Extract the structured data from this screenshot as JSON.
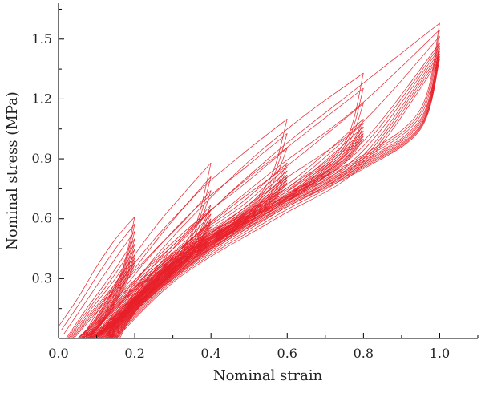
{
  "chart_data": {
    "type": "line",
    "title": "",
    "xlabel": "Nominal strain",
    "ylabel": "Nominal stress (MPa)",
    "xlim": [
      0.0,
      1.1
    ],
    "ylim": [
      0.0,
      1.68
    ],
    "xticks": [
      0.0,
      0.2,
      0.4,
      0.6,
      0.8,
      1.0
    ],
    "xtick_labels": [
      "0.0",
      "0.2",
      "0.4",
      "0.6",
      "0.8",
      "1.0"
    ],
    "yticks": [
      0.3,
      0.6,
      0.9,
      1.2,
      1.5
    ],
    "ytick_labels": [
      "0.3",
      "0.6",
      "0.9",
      "1.2",
      "1.5"
    ],
    "grid": false,
    "legend": "none",
    "line_color": "#e8202a",
    "series": [
      {
        "max_strain": 0.2,
        "loops": [
          {
            "loading": [
              [
                0.0,
                0.06
              ],
              [
                0.05,
                0.2
              ],
              [
                0.1,
                0.36
              ],
              [
                0.15,
                0.5
              ],
              [
                0.2,
                0.61
              ]
            ],
            "unloading": [
              [
                0.2,
                0.61
              ],
              [
                0.17,
                0.36
              ],
              [
                0.13,
                0.2
              ],
              [
                0.09,
                0.08
              ],
              [
                0.05,
                0.0
              ]
            ]
          },
          {
            "loading": [
              [
                0.02,
                0.0
              ],
              [
                0.07,
                0.14
              ],
              [
                0.12,
                0.27
              ],
              [
                0.16,
                0.38
              ],
              [
                0.2,
                0.5
              ]
            ],
            "unloading": [
              [
                0.2,
                0.5
              ],
              [
                0.17,
                0.32
              ],
              [
                0.13,
                0.17
              ],
              [
                0.09,
                0.06
              ],
              [
                0.05,
                0.0
              ]
            ]
          },
          {
            "loading": [
              [
                0.03,
                0.0
              ],
              [
                0.08,
                0.12
              ],
              [
                0.13,
                0.23
              ],
              [
                0.17,
                0.33
              ],
              [
                0.2,
                0.42
              ]
            ],
            "unloading": [
              [
                0.2,
                0.42
              ],
              [
                0.17,
                0.28
              ],
              [
                0.13,
                0.14
              ],
              [
                0.09,
                0.04
              ],
              [
                0.06,
                0.0
              ]
            ]
          },
          {
            "loading": [
              [
                0.04,
                0.0
              ],
              [
                0.09,
                0.11
              ],
              [
                0.14,
                0.22
              ],
              [
                0.18,
                0.31
              ],
              [
                0.2,
                0.37
              ]
            ],
            "unloading": [
              [
                0.2,
                0.37
              ],
              [
                0.17,
                0.25
              ],
              [
                0.13,
                0.12
              ],
              [
                0.09,
                0.03
              ],
              [
                0.06,
                0.0
              ]
            ]
          }
        ]
      },
      {
        "max_strain": 0.4,
        "loops": [
          {
            "loading": [
              [
                0.06,
                0.0
              ],
              [
                0.15,
                0.28
              ],
              [
                0.25,
                0.55
              ],
              [
                0.33,
                0.73
              ],
              [
                0.4,
                0.88
              ]
            ],
            "unloading": [
              [
                0.4,
                0.88
              ],
              [
                0.36,
                0.57
              ],
              [
                0.3,
                0.4
              ],
              [
                0.23,
                0.27
              ],
              [
                0.14,
                0.1
              ],
              [
                0.07,
                0.0
              ]
            ]
          },
          {
            "loading": [
              [
                0.07,
                0.0
              ],
              [
                0.15,
                0.2
              ],
              [
                0.25,
                0.38
              ],
              [
                0.33,
                0.52
              ],
              [
                0.4,
                0.67
              ]
            ],
            "unloading": [
              [
                0.4,
                0.67
              ],
              [
                0.36,
                0.5
              ],
              [
                0.3,
                0.36
              ],
              [
                0.23,
                0.24
              ],
              [
                0.14,
                0.08
              ],
              [
                0.08,
                0.0
              ]
            ]
          },
          {
            "loading": [
              [
                0.08,
                0.0
              ],
              [
                0.16,
                0.19
              ],
              [
                0.26,
                0.35
              ],
              [
                0.34,
                0.48
              ],
              [
                0.4,
                0.6
              ]
            ],
            "unloading": [
              [
                0.4,
                0.6
              ],
              [
                0.36,
                0.46
              ],
              [
                0.3,
                0.34
              ],
              [
                0.23,
                0.22
              ],
              [
                0.14,
                0.07
              ],
              [
                0.08,
                0.0
              ]
            ]
          },
          {
            "loading": [
              [
                0.08,
                0.0
              ],
              [
                0.17,
                0.19
              ],
              [
                0.27,
                0.34
              ],
              [
                0.35,
                0.46
              ],
              [
                0.4,
                0.56
              ]
            ],
            "unloading": [
              [
                0.4,
                0.56
              ],
              [
                0.36,
                0.44
              ],
              [
                0.3,
                0.32
              ],
              [
                0.23,
                0.21
              ],
              [
                0.14,
                0.06
              ],
              [
                0.09,
                0.0
              ]
            ]
          }
        ]
      },
      {
        "max_strain": 0.6,
        "loops": [
          {
            "loading": [
              [
                0.08,
                0.0
              ],
              [
                0.2,
                0.35
              ],
              [
                0.35,
                0.7
              ],
              [
                0.48,
                0.92
              ],
              [
                0.6,
                1.1
              ]
            ],
            "unloading": [
              [
                0.6,
                1.1
              ],
              [
                0.55,
                0.78
              ],
              [
                0.45,
                0.6
              ],
              [
                0.33,
                0.45
              ],
              [
                0.2,
                0.22
              ],
              [
                0.09,
                0.0
              ]
            ]
          },
          {
            "loading": [
              [
                0.09,
                0.0
              ],
              [
                0.2,
                0.26
              ],
              [
                0.35,
                0.5
              ],
              [
                0.48,
                0.68
              ],
              [
                0.6,
                0.88
              ]
            ],
            "unloading": [
              [
                0.6,
                0.88
              ],
              [
                0.55,
                0.72
              ],
              [
                0.45,
                0.57
              ],
              [
                0.33,
                0.43
              ],
              [
                0.2,
                0.2
              ],
              [
                0.1,
                0.0
              ]
            ]
          },
          {
            "loading": [
              [
                0.1,
                0.0
              ],
              [
                0.21,
                0.25
              ],
              [
                0.36,
                0.48
              ],
              [
                0.49,
                0.64
              ],
              [
                0.6,
                0.82
              ]
            ],
            "unloading": [
              [
                0.6,
                0.82
              ],
              [
                0.55,
                0.69
              ],
              [
                0.45,
                0.55
              ],
              [
                0.33,
                0.41
              ],
              [
                0.2,
                0.19
              ],
              [
                0.11,
                0.0
              ]
            ]
          },
          {
            "loading": [
              [
                0.11,
                0.0
              ],
              [
                0.22,
                0.24
              ],
              [
                0.37,
                0.46
              ],
              [
                0.5,
                0.62
              ],
              [
                0.6,
                0.78
              ]
            ],
            "unloading": [
              [
                0.6,
                0.78
              ],
              [
                0.55,
                0.67
              ],
              [
                0.45,
                0.53
              ],
              [
                0.33,
                0.39
              ],
              [
                0.2,
                0.18
              ],
              [
                0.12,
                0.0
              ]
            ]
          }
        ]
      },
      {
        "max_strain": 0.8,
        "loops": [
          {
            "loading": [
              [
                0.1,
                0.0
              ],
              [
                0.25,
                0.4
              ],
              [
                0.45,
                0.8
              ],
              [
                0.62,
                1.08
              ],
              [
                0.8,
                1.33
              ]
            ],
            "unloading": [
              [
                0.8,
                1.33
              ],
              [
                0.75,
                0.98
              ],
              [
                0.62,
                0.78
              ],
              [
                0.48,
                0.62
              ],
              [
                0.32,
                0.42
              ],
              [
                0.18,
                0.15
              ],
              [
                0.11,
                0.0
              ]
            ]
          },
          {
            "loading": [
              [
                0.11,
                0.0
              ],
              [
                0.25,
                0.3
              ],
              [
                0.45,
                0.58
              ],
              [
                0.62,
                0.8
              ],
              [
                0.8,
                1.1
              ]
            ],
            "unloading": [
              [
                0.8,
                1.1
              ],
              [
                0.75,
                0.93
              ],
              [
                0.62,
                0.75
              ],
              [
                0.48,
                0.6
              ],
              [
                0.32,
                0.4
              ],
              [
                0.18,
                0.14
              ],
              [
                0.12,
                0.0
              ]
            ]
          },
          {
            "loading": [
              [
                0.12,
                0.0
              ],
              [
                0.26,
                0.29
              ],
              [
                0.46,
                0.56
              ],
              [
                0.63,
                0.76
              ],
              [
                0.8,
                1.04
              ]
            ],
            "unloading": [
              [
                0.8,
                1.04
              ],
              [
                0.75,
                0.9
              ],
              [
                0.62,
                0.73
              ],
              [
                0.48,
                0.58
              ],
              [
                0.32,
                0.38
              ],
              [
                0.18,
                0.13
              ],
              [
                0.13,
                0.0
              ]
            ]
          },
          {
            "loading": [
              [
                0.13,
                0.0
              ],
              [
                0.27,
                0.28
              ],
              [
                0.47,
                0.54
              ],
              [
                0.64,
                0.74
              ],
              [
                0.8,
                1.0
              ]
            ],
            "unloading": [
              [
                0.8,
                1.0
              ],
              [
                0.75,
                0.88
              ],
              [
                0.62,
                0.71
              ],
              [
                0.48,
                0.56
              ],
              [
                0.32,
                0.36
              ],
              [
                0.18,
                0.12
              ],
              [
                0.14,
                0.0
              ]
            ]
          }
        ]
      },
      {
        "max_strain": 1.0,
        "loops": [
          {
            "loading": [
              [
                0.12,
                0.0
              ],
              [
                0.3,
                0.45
              ],
              [
                0.55,
                0.9
              ],
              [
                0.78,
                1.25
              ],
              [
                1.0,
                1.58
              ]
            ],
            "unloading": [
              [
                1.0,
                1.58
              ],
              [
                0.95,
                1.15
              ],
              [
                0.8,
                0.92
              ],
              [
                0.6,
                0.72
              ],
              [
                0.4,
                0.5
              ],
              [
                0.22,
                0.2
              ],
              [
                0.13,
                0.0
              ]
            ]
          },
          {
            "loading": [
              [
                0.13,
                0.0
              ],
              [
                0.3,
                0.33
              ],
              [
                0.55,
                0.66
              ],
              [
                0.78,
                0.95
              ],
              [
                1.0,
                1.48
              ]
            ],
            "unloading": [
              [
                1.0,
                1.48
              ],
              [
                0.95,
                1.1
              ],
              [
                0.8,
                0.89
              ],
              [
                0.6,
                0.7
              ],
              [
                0.4,
                0.48
              ],
              [
                0.22,
                0.19
              ],
              [
                0.14,
                0.0
              ]
            ]
          },
          {
            "loading": [
              [
                0.14,
                0.0
              ],
              [
                0.31,
                0.32
              ],
              [
                0.56,
                0.63
              ],
              [
                0.79,
                0.9
              ],
              [
                1.0,
                1.44
              ]
            ],
            "unloading": [
              [
                1.0,
                1.44
              ],
              [
                0.95,
                1.07
              ],
              [
                0.8,
                0.87
              ],
              [
                0.6,
                0.68
              ],
              [
                0.4,
                0.46
              ],
              [
                0.22,
                0.18
              ],
              [
                0.15,
                0.0
              ]
            ]
          },
          {
            "loading": [
              [
                0.15,
                0.0
              ],
              [
                0.32,
                0.31
              ],
              [
                0.57,
                0.6
              ],
              [
                0.8,
                0.87
              ],
              [
                1.0,
                1.4
              ]
            ],
            "unloading": [
              [
                1.0,
                1.4
              ],
              [
                0.95,
                1.05
              ],
              [
                0.8,
                0.85
              ],
              [
                0.6,
                0.66
              ],
              [
                0.4,
                0.44
              ],
              [
                0.22,
                0.17
              ],
              [
                0.16,
                0.0
              ]
            ]
          }
        ]
      }
    ]
  }
}
